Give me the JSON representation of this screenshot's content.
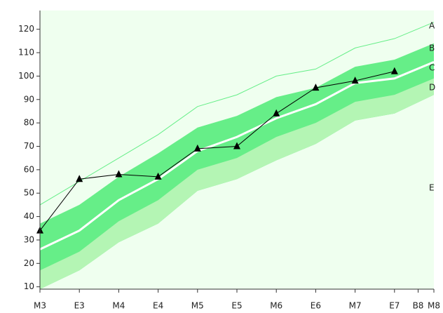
{
  "chart_data": {
    "type": "line",
    "x": [
      0,
      1,
      2,
      3,
      4,
      5,
      6,
      7,
      8,
      9,
      10
    ],
    "xlim": [
      0,
      10
    ],
    "xticks": [
      {
        "value": 0,
        "label": "M3"
      },
      {
        "value": 1,
        "label": "E3"
      },
      {
        "value": 2,
        "label": "M4"
      },
      {
        "value": 3,
        "label": "E4"
      },
      {
        "value": 4,
        "label": "M5"
      },
      {
        "value": 5,
        "label": "E5"
      },
      {
        "value": 6,
        "label": "M6"
      },
      {
        "value": 7,
        "label": "E6"
      },
      {
        "value": 8,
        "label": "M7"
      },
      {
        "value": 9,
        "label": "E7"
      },
      {
        "value": 9.6,
        "label": "B8"
      },
      {
        "value": 10,
        "label": "M8"
      }
    ],
    "ylim": [
      9,
      128
    ],
    "yticks": [
      10,
      20,
      30,
      40,
      50,
      60,
      70,
      80,
      90,
      100,
      110,
      120
    ],
    "background": "#efffef",
    "series": [
      {
        "name": "A",
        "color": "#66ee88",
        "width": 1,
        "values": [
          45,
          55,
          65,
          75,
          87,
          92,
          100,
          103,
          112,
          116,
          123
        ]
      },
      {
        "name": "B",
        "fill": "#66ee88",
        "values": [
          37,
          45,
          57,
          67,
          78,
          83,
          91,
          95,
          104,
          107,
          114
        ]
      },
      {
        "name": "C",
        "color": "#ffffff",
        "width": 3,
        "values": [
          26,
          34,
          47,
          56,
          68,
          74,
          82,
          88,
          97,
          99,
          106
        ]
      },
      {
        "name": "D",
        "fill": "#b4f5b4",
        "values": [
          17,
          25,
          38,
          47,
          60,
          65,
          74,
          80,
          89,
          92,
          99
        ]
      },
      {
        "name": "E",
        "values": [
          9,
          17,
          29,
          37,
          51,
          56,
          64,
          71,
          81,
          84,
          92
        ]
      },
      {
        "color": "#000000",
        "width": 1,
        "marker": "triangle",
        "values": [
          34,
          56,
          58,
          57,
          69,
          70,
          84,
          95,
          98,
          102,
          null
        ]
      }
    ]
  }
}
